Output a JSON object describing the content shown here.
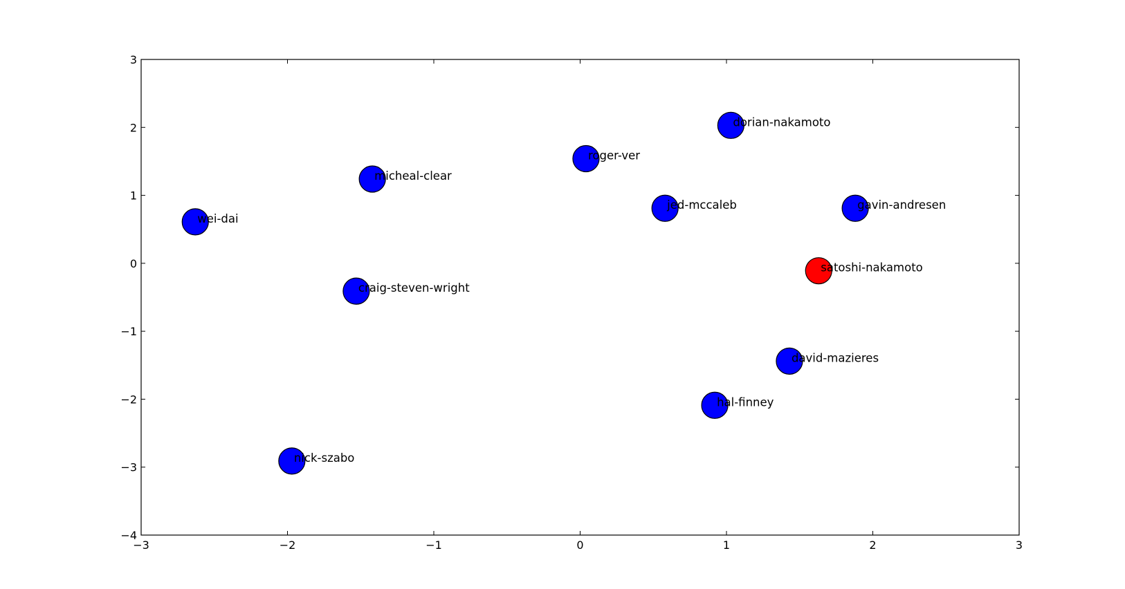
{
  "chart_data": {
    "type": "scatter",
    "title": "",
    "xlabel": "",
    "ylabel": "",
    "xlim": [
      -3,
      3
    ],
    "ylim": [
      -4,
      3
    ],
    "xticks": [
      -3,
      -2,
      -1,
      0,
      1,
      2,
      3
    ],
    "yticks": [
      3,
      2,
      1,
      0,
      -1,
      -2,
      -3,
      -4
    ],
    "grid": false,
    "points": [
      {
        "label": "wei-dai",
        "x": -2.63,
        "y": 0.61,
        "color": "#0000ff"
      },
      {
        "label": "micheal-clear",
        "x": -1.42,
        "y": 1.24,
        "color": "#0000ff"
      },
      {
        "label": "craig-steven-wright",
        "x": -1.53,
        "y": -0.41,
        "color": "#0000ff"
      },
      {
        "label": "nick-szabo",
        "x": -1.97,
        "y": -2.91,
        "color": "#0000ff"
      },
      {
        "label": "roger-ver",
        "x": 0.04,
        "y": 1.54,
        "color": "#0000ff"
      },
      {
        "label": "jed-mccaleb",
        "x": 0.58,
        "y": 0.81,
        "color": "#0000ff"
      },
      {
        "label": "dorian-nakamoto",
        "x": 1.03,
        "y": 2.03,
        "color": "#0000ff"
      },
      {
        "label": "gavin-andresen",
        "x": 1.88,
        "y": 0.81,
        "color": "#0000ff"
      },
      {
        "label": "satoshi-nakamoto",
        "x": 1.63,
        "y": -0.11,
        "color": "#ff0000"
      },
      {
        "label": "david-mazieres",
        "x": 1.43,
        "y": -1.44,
        "color": "#0000ff"
      },
      {
        "label": "hal-finney",
        "x": 0.92,
        "y": -2.09,
        "color": "#0000ff"
      }
    ]
  }
}
